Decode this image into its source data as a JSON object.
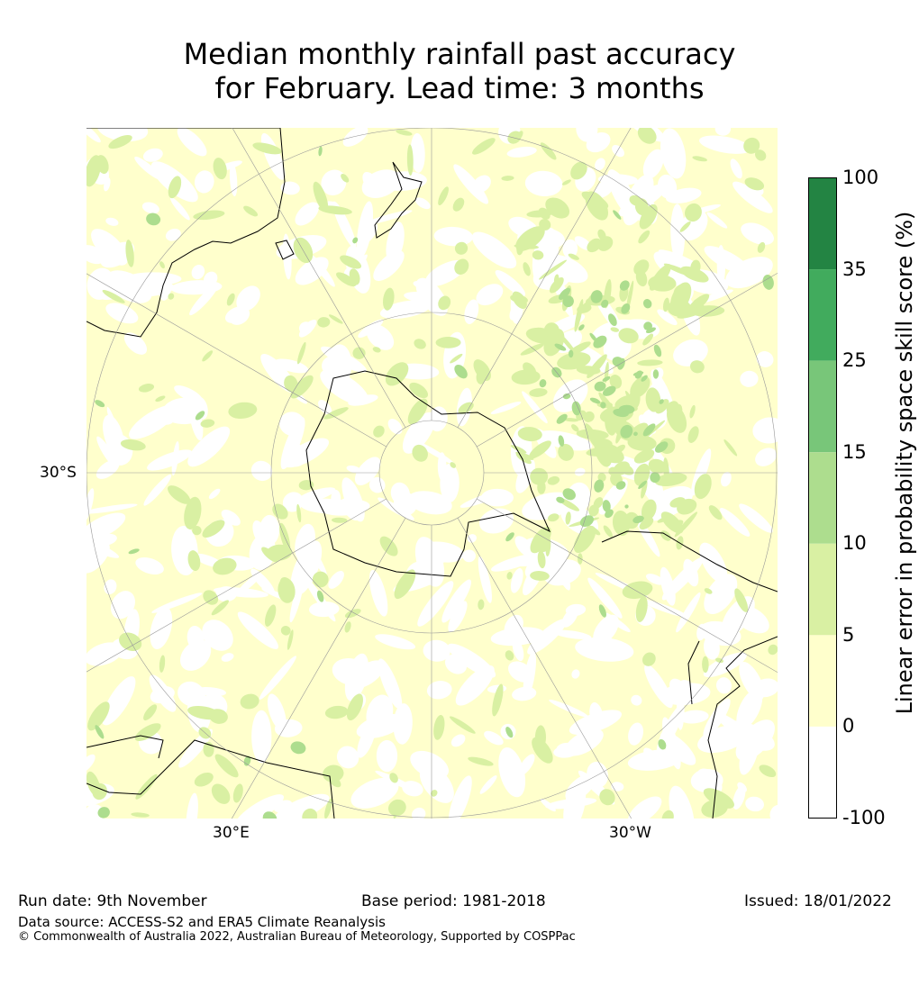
{
  "title_line1": "Median monthly rainfall past accuracy",
  "title_line2": "for February. Lead time: 3 months",
  "map": {
    "projection": "south-polar-stereographic",
    "lat_label": "30°S",
    "lon_labels": [
      "30°E",
      "30°W"
    ]
  },
  "colorbar": {
    "label": "Linear error in probability space skill score (%)",
    "ticks": [
      "100",
      "35",
      "25",
      "15",
      "10",
      "5",
      "0",
      "-100"
    ],
    "bins": [
      {
        "range": "35-100",
        "color": "#238443"
      },
      {
        "range": "25-35",
        "color": "#41ab5d"
      },
      {
        "range": "15-25",
        "color": "#78c679"
      },
      {
        "range": "10-15",
        "color": "#addd8e"
      },
      {
        "range": "5-10",
        "color": "#d9f0a3"
      },
      {
        "range": "0-5",
        "color": "#ffffcc"
      },
      {
        "range": "-100-0",
        "color": "#ffffff"
      }
    ]
  },
  "footer": {
    "run_date": "Run date: 9th November",
    "base_period": "Base period: 1981-2018",
    "issued": "Issued: 18/01/2022",
    "data_source": "Data source: ACCESS-S2 and ERA5 Climate Reanalysis",
    "copyright": "© Commonwealth of Australia 2022, Australian Bureau of Meteorology, Supported by COSPPac"
  }
}
